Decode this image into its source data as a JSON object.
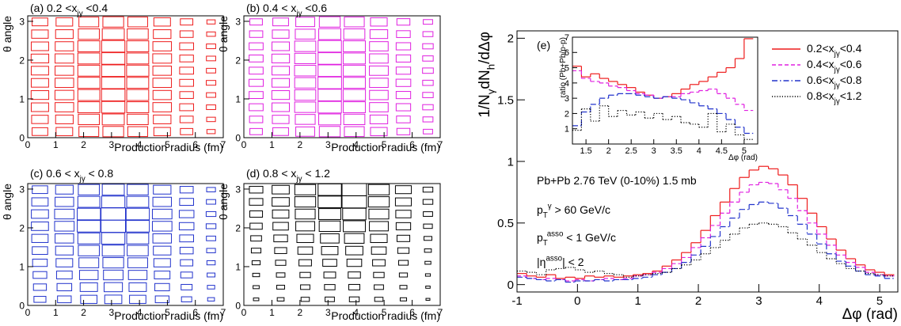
{
  "chart_data": [
    {
      "type": "box2d",
      "color": "#ee1c1c",
      "title": [
        {
          "text": "(a) 0.2 <x"
        },
        {
          "text": "jγ",
          "sub": true
        },
        {
          "text": " <0.4"
        }
      ],
      "xlabel": [
        {
          "text": "Production radius (fm)"
        }
      ],
      "ylabel": [
        {
          "text": "θ angle"
        }
      ],
      "xlim": [
        0,
        7
      ],
      "ylim": [
        0,
        3.1416
      ],
      "xticks": [
        0,
        1,
        2,
        3,
        4,
        5,
        6,
        7
      ],
      "yticks": [
        0,
        1,
        2,
        3
      ],
      "xbins": [
        0,
        0.875,
        1.75,
        2.625,
        3.5,
        4.375,
        5.25,
        6.125,
        7
      ],
      "ybins": [
        0,
        0.314,
        0.628,
        0.942,
        1.257,
        1.571,
        1.885,
        2.199,
        2.513,
        2.827,
        3.142
      ],
      "z": [
        [
          0.64,
          0.68,
          0.81,
          0.85,
          0.81,
          0.68,
          0.51,
          0.34
        ],
        [
          0.68,
          0.72,
          0.86,
          0.9,
          0.86,
          0.72,
          0.54,
          0.36
        ],
        [
          0.71,
          0.76,
          0.9,
          0.95,
          0.9,
          0.76,
          0.57,
          0.38
        ],
        [
          0.72,
          0.77,
          0.9,
          0.96,
          0.9,
          0.75,
          0.56,
          0.38
        ],
        [
          0.71,
          0.76,
          0.91,
          0.95,
          0.9,
          0.76,
          0.57,
          0.39
        ],
        [
          0.71,
          0.76,
          0.9,
          0.95,
          0.91,
          0.76,
          0.57,
          0.38
        ],
        [
          0.72,
          0.76,
          0.9,
          0.95,
          0.9,
          0.77,
          0.56,
          0.38
        ],
        [
          0.71,
          0.75,
          0.9,
          0.95,
          0.9,
          0.76,
          0.57,
          0.38
        ],
        [
          0.68,
          0.72,
          0.86,
          0.9,
          0.86,
          0.72,
          0.54,
          0.36
        ],
        [
          0.64,
          0.68,
          0.81,
          0.85,
          0.81,
          0.68,
          0.51,
          0.34
        ]
      ]
    },
    {
      "type": "box2d",
      "color": "#e020e0",
      "title": [
        {
          "text": "(b) 0.4 < x"
        },
        {
          "text": "jγ",
          "sub": true
        },
        {
          "text": " <0.6"
        }
      ],
      "xlabel": [
        {
          "text": "Production radius (fm)"
        }
      ],
      "ylabel": [
        {
          "text": "θ angle"
        }
      ],
      "xlim": [
        0,
        7
      ],
      "ylim": [
        0,
        3.1416
      ],
      "xticks": [
        0,
        1,
        2,
        3,
        4,
        5,
        6,
        7
      ],
      "yticks": [
        0,
        1,
        2,
        3
      ],
      "xbins": [
        0,
        0.875,
        1.75,
        2.625,
        3.5,
        4.375,
        5.25,
        6.125,
        7
      ],
      "ybins": [
        0,
        0.314,
        0.628,
        0.942,
        1.257,
        1.571,
        1.885,
        2.199,
        2.513,
        2.827,
        3.142
      ],
      "z": [
        [
          0.51,
          0.64,
          0.77,
          0.85,
          0.81,
          0.68,
          0.53,
          0.38
        ],
        [
          0.54,
          0.68,
          0.81,
          0.9,
          0.86,
          0.72,
          0.56,
          0.41
        ],
        [
          0.57,
          0.71,
          0.86,
          0.95,
          0.9,
          0.76,
          0.59,
          0.43
        ],
        [
          0.57,
          0.72,
          0.86,
          0.95,
          0.91,
          0.76,
          0.59,
          0.43
        ],
        [
          0.58,
          0.71,
          0.86,
          0.96,
          0.9,
          0.76,
          0.6,
          0.43
        ],
        [
          0.57,
          0.71,
          0.87,
          0.95,
          0.9,
          0.77,
          0.59,
          0.44
        ],
        [
          0.57,
          0.72,
          0.86,
          0.95,
          0.9,
          0.76,
          0.59,
          0.43
        ],
        [
          0.57,
          0.71,
          0.86,
          0.95,
          0.9,
          0.76,
          0.59,
          0.43
        ],
        [
          0.54,
          0.68,
          0.81,
          0.9,
          0.86,
          0.72,
          0.56,
          0.41
        ],
        [
          0.51,
          0.64,
          0.77,
          0.85,
          0.81,
          0.68,
          0.53,
          0.38
        ]
      ]
    },
    {
      "type": "box2d",
      "color": "#2233cc",
      "title": [
        {
          "text": "(c) 0.6 < x"
        },
        {
          "text": "jγ",
          "sub": true
        },
        {
          "text": " < 0.8"
        }
      ],
      "xlabel": [
        {
          "text": "Production radius (fm)"
        }
      ],
      "ylabel": [
        {
          "text": "θ angle"
        }
      ],
      "xlim": [
        0,
        7
      ],
      "ylim": [
        0,
        3.1416
      ],
      "xticks": [
        0,
        1,
        2,
        3,
        4,
        5,
        6,
        7
      ],
      "yticks": [
        0,
        1,
        2,
        3
      ],
      "xbins": [
        0,
        0.875,
        1.75,
        2.625,
        3.5,
        4.375,
        5.25,
        6.125,
        7
      ],
      "ybins": [
        0,
        0.314,
        0.628,
        0.942,
        1.257,
        1.571,
        1.885,
        2.199,
        2.513,
        2.827,
        3.142
      ],
      "z": [
        [
          0.49,
          0.56,
          0.67,
          0.7,
          0.67,
          0.56,
          0.42,
          0.28
        ],
        [
          0.53,
          0.6,
          0.71,
          0.75,
          0.71,
          0.6,
          0.45,
          0.3
        ],
        [
          0.56,
          0.64,
          0.76,
          0.8,
          0.76,
          0.64,
          0.48,
          0.32
        ],
        [
          0.6,
          0.68,
          0.81,
          0.85,
          0.81,
          0.68,
          0.51,
          0.34
        ],
        [
          0.63,
          0.72,
          0.86,
          0.9,
          0.86,
          0.72,
          0.54,
          0.36
        ],
        [
          0.67,
          0.76,
          0.9,
          0.95,
          0.9,
          0.76,
          0.57,
          0.38
        ],
        [
          0.7,
          0.8,
          0.95,
          1.0,
          0.95,
          0.8,
          0.6,
          0.4
        ],
        [
          0.7,
          0.8,
          0.95,
          1.0,
          0.95,
          0.8,
          0.6,
          0.4
        ],
        [
          0.67,
          0.76,
          0.9,
          0.95,
          0.9,
          0.76,
          0.57,
          0.38
        ],
        [
          0.63,
          0.72,
          0.86,
          0.9,
          0.86,
          0.72,
          0.54,
          0.36
        ]
      ]
    },
    {
      "type": "box2d",
      "color": "#000000",
      "title": [
        {
          "text": "(d) 0.8 < x"
        },
        {
          "text": "jγ",
          "sub": true
        },
        {
          "text": " < 1.2"
        }
      ],
      "xlabel": [
        {
          "text": "Production radius (fm)"
        }
      ],
      "ylabel": [
        {
          "text": "θ angle"
        }
      ],
      "xlim": [
        0,
        7
      ],
      "ylim": [
        0,
        3.1416
      ],
      "xticks": [
        0,
        1,
        2,
        3,
        4,
        5,
        6,
        7
      ],
      "yticks": [
        0,
        1,
        2,
        3
      ],
      "xbins": [
        0,
        0.875,
        1.75,
        2.625,
        3.5,
        4.375,
        5.25,
        6.125,
        7
      ],
      "ybins": [
        0,
        0.314,
        0.628,
        0.942,
        1.257,
        1.571,
        1.885,
        2.199,
        2.513,
        2.827,
        3.142
      ],
      "z": [
        [
          0.22,
          0.28,
          0.34,
          0.38,
          0.4,
          0.34,
          0.26,
          0.16
        ],
        [
          0.25,
          0.32,
          0.38,
          0.43,
          0.45,
          0.38,
          0.29,
          0.18
        ],
        [
          0.28,
          0.35,
          0.43,
          0.48,
          0.5,
          0.43,
          0.33,
          0.2
        ],
        [
          0.33,
          0.42,
          0.51,
          0.57,
          0.6,
          0.51,
          0.39,
          0.24
        ],
        [
          0.39,
          0.49,
          0.6,
          0.67,
          0.7,
          0.6,
          0.46,
          0.28
        ],
        [
          0.44,
          0.56,
          0.68,
          0.76,
          0.8,
          0.68,
          0.52,
          0.32
        ],
        [
          0.5,
          0.63,
          0.77,
          0.86,
          0.9,
          0.77,
          0.59,
          0.36
        ],
        [
          0.52,
          0.67,
          0.81,
          0.9,
          0.95,
          0.81,
          0.62,
          0.38
        ],
        [
          0.55,
          0.7,
          0.85,
          0.95,
          1.0,
          0.85,
          0.65,
          0.4
        ],
        [
          0.55,
          0.7,
          0.85,
          0.95,
          1.0,
          0.85,
          0.65,
          0.4
        ]
      ]
    },
    {
      "type": "histogram",
      "xlabel": [
        {
          "text": "Δφ (rad)"
        }
      ],
      "ylabel": [
        {
          "text": "1/N"
        },
        {
          "text": "γ",
          "sub": true
        },
        {
          "text": "dN"
        },
        {
          "text": "h",
          "sub": true
        },
        {
          "text": "/dΔφ"
        }
      ],
      "xlim": [
        -1,
        5.3
      ],
      "ylim": [
        -0.06,
        2.06
      ],
      "xticks": [
        -1,
        0,
        1,
        2,
        3,
        4,
        5
      ],
      "yticks": [
        0,
        0.5,
        1,
        1.5,
        2
      ],
      "legend": "upper right",
      "annotations": [
        [
          {
            "text": "(e)"
          }
        ],
        [
          {
            "text": "Pb+Pb 2.76 TeV (0-10%) 1.5 mb"
          }
        ],
        [
          {
            "text": "p"
          },
          {
            "text": "T",
            "sub": true
          },
          {
            "text": "γ",
            "sup": true
          },
          {
            "text": " > 60 GeV/c"
          }
        ],
        [
          {
            "text": "p"
          },
          {
            "text": "T",
            "sub": true
          },
          {
            "text": "asso",
            "sup": true
          },
          {
            "text": " < 1 GeV/c"
          }
        ],
        [
          {
            "text": "|η"
          },
          {
            "text": "asso",
            "sup": true
          },
          {
            "text": "| < 2"
          }
        ]
      ],
      "bins": [
        -1,
        -0.84,
        -0.68,
        -0.52,
        -0.36,
        -0.2,
        -0.04,
        0.12,
        0.28,
        0.44,
        0.6,
        0.76,
        0.92,
        1.08,
        1.24,
        1.4,
        1.56,
        1.72,
        1.88,
        2.04,
        2.2,
        2.36,
        2.52,
        2.68,
        2.84,
        3.0,
        3.16,
        3.32,
        3.48,
        3.64,
        3.8,
        3.96,
        4.12,
        4.28,
        4.44,
        4.6,
        4.76,
        4.92,
        5.08,
        5.24
      ],
      "series": [
        {
          "name": [
            {
              "text": "0.2<x"
            },
            {
              "text": "jγ",
              "sub": true
            },
            {
              "text": "<0.4"
            }
          ],
          "color": "#ee1c1c",
          "linestyle": "solid",
          "values": [
            0.09,
            0.07,
            0.06,
            0.08,
            0.05,
            0.06,
            0.05,
            0.07,
            0.06,
            0.07,
            0.06,
            0.07,
            0.08,
            0.09,
            0.11,
            0.15,
            0.2,
            0.26,
            0.34,
            0.44,
            0.56,
            0.67,
            0.78,
            0.87,
            0.93,
            0.96,
            0.94,
            0.89,
            0.81,
            0.7,
            0.58,
            0.47,
            0.37,
            0.28,
            0.21,
            0.16,
            0.12,
            0.1,
            0.08
          ]
        },
        {
          "name": [
            {
              "text": "0.4<x"
            },
            {
              "text": "jγ",
              "sub": true
            },
            {
              "text": "<0.6"
            }
          ],
          "color": "#e020e0",
          "linestyle": "dashed",
          "values": [
            0.07,
            0.05,
            0.04,
            0.05,
            0.04,
            0.03,
            0.04,
            0.03,
            0.04,
            0.05,
            0.04,
            0.05,
            0.07,
            0.08,
            0.1,
            0.13,
            0.17,
            0.22,
            0.3,
            0.38,
            0.48,
            0.58,
            0.67,
            0.75,
            0.81,
            0.83,
            0.82,
            0.77,
            0.7,
            0.6,
            0.5,
            0.41,
            0.32,
            0.24,
            0.18,
            0.14,
            0.1,
            0.08,
            0.07
          ]
        },
        {
          "name": [
            {
              "text": "0.6<x"
            },
            {
              "text": "jγ",
              "sub": true
            },
            {
              "text": "<0.8"
            }
          ],
          "color": "#2233cc",
          "linestyle": "dashdot",
          "values": [
            0.06,
            0.05,
            0.04,
            0.03,
            0.04,
            0.02,
            0.03,
            0.03,
            0.04,
            0.03,
            0.04,
            0.04,
            0.05,
            0.06,
            0.08,
            0.1,
            0.13,
            0.18,
            0.24,
            0.31,
            0.39,
            0.47,
            0.54,
            0.61,
            0.65,
            0.67,
            0.66,
            0.62,
            0.56,
            0.49,
            0.41,
            0.33,
            0.25,
            0.19,
            0.15,
            0.11,
            0.08,
            0.07,
            0.05
          ]
        },
        {
          "name": [
            {
              "text": "0.8<x"
            },
            {
              "text": "jγ",
              "sub": true
            },
            {
              "text": "<1.2"
            }
          ],
          "color": "#000000",
          "linestyle": "dotted",
          "values": [
            0.11,
            0.1,
            0.08,
            0.12,
            0.13,
            0.14,
            0.12,
            0.1,
            0.11,
            0.09,
            0.08,
            0.06,
            0.07,
            0.08,
            0.09,
            0.1,
            0.13,
            0.16,
            0.2,
            0.25,
            0.3,
            0.36,
            0.41,
            0.46,
            0.49,
            0.5,
            0.49,
            0.47,
            0.42,
            0.37,
            0.32,
            0.26,
            0.21,
            0.17,
            0.13,
            0.11,
            0.09,
            0.08,
            0.07
          ]
        }
      ]
    },
    {
      "type": "histogram",
      "background": "#ffffff",
      "xlabel": [
        {
          "text": "Δφ (rad)"
        }
      ],
      "ylabel": [
        {
          "text": "ratio (Pb+Pb/p-p)"
        }
      ],
      "xlim": [
        1.2,
        5.3
      ],
      "ylim": [
        0,
        7
      ],
      "xticks": [
        1.5,
        2,
        2.5,
        3,
        3.5,
        4,
        4.5,
        5
      ],
      "yticks": [
        1,
        2,
        3,
        4,
        5,
        6,
        7
      ],
      "bins": [
        1.2,
        1.4,
        1.6,
        1.8,
        2.0,
        2.2,
        2.4,
        2.6,
        2.8,
        3.0,
        3.2,
        3.4,
        3.6,
        3.8,
        4.0,
        4.2,
        4.4,
        4.6,
        4.8,
        5.0,
        5.2
      ],
      "series": [
        {
          "color": "#ee1c1c",
          "linestyle": "solid",
          "values": [
            5.1,
            4.4,
            4.6,
            4.3,
            4.1,
            3.9,
            3.7,
            3.4,
            3.2,
            3.0,
            3.1,
            3.3,
            3.6,
            3.9,
            4.1,
            4.4,
            4.7,
            5.0,
            5.6,
            6.9
          ]
        },
        {
          "color": "#e020e0",
          "linestyle": "dashed",
          "values": [
            4.8,
            4.3,
            4.1,
            4.0,
            3.8,
            3.7,
            3.5,
            3.3,
            3.2,
            3.0,
            3.1,
            3.1,
            3.3,
            3.4,
            3.5,
            3.6,
            3.3,
            3.0,
            2.6,
            2.2
          ]
        },
        {
          "color": "#2233cc",
          "linestyle": "dashdot",
          "values": [
            1.2,
            2.1,
            2.6,
            3.0,
            3.2,
            3.3,
            3.3,
            3.2,
            3.1,
            3.0,
            3.1,
            3.0,
            2.9,
            2.7,
            2.5,
            2.3,
            2.0,
            1.6,
            1.1,
            0.7
          ]
        },
        {
          "color": "#000000",
          "linestyle": "dotted",
          "values": [
            0.9,
            2.3,
            1.5,
            2.5,
            1.8,
            2.2,
            1.9,
            2.1,
            1.7,
            2.0,
            1.6,
            1.8,
            1.4,
            1.3,
            1.1,
            2.0,
            0.8,
            1.3,
            0.6,
            0.3
          ]
        }
      ]
    }
  ]
}
